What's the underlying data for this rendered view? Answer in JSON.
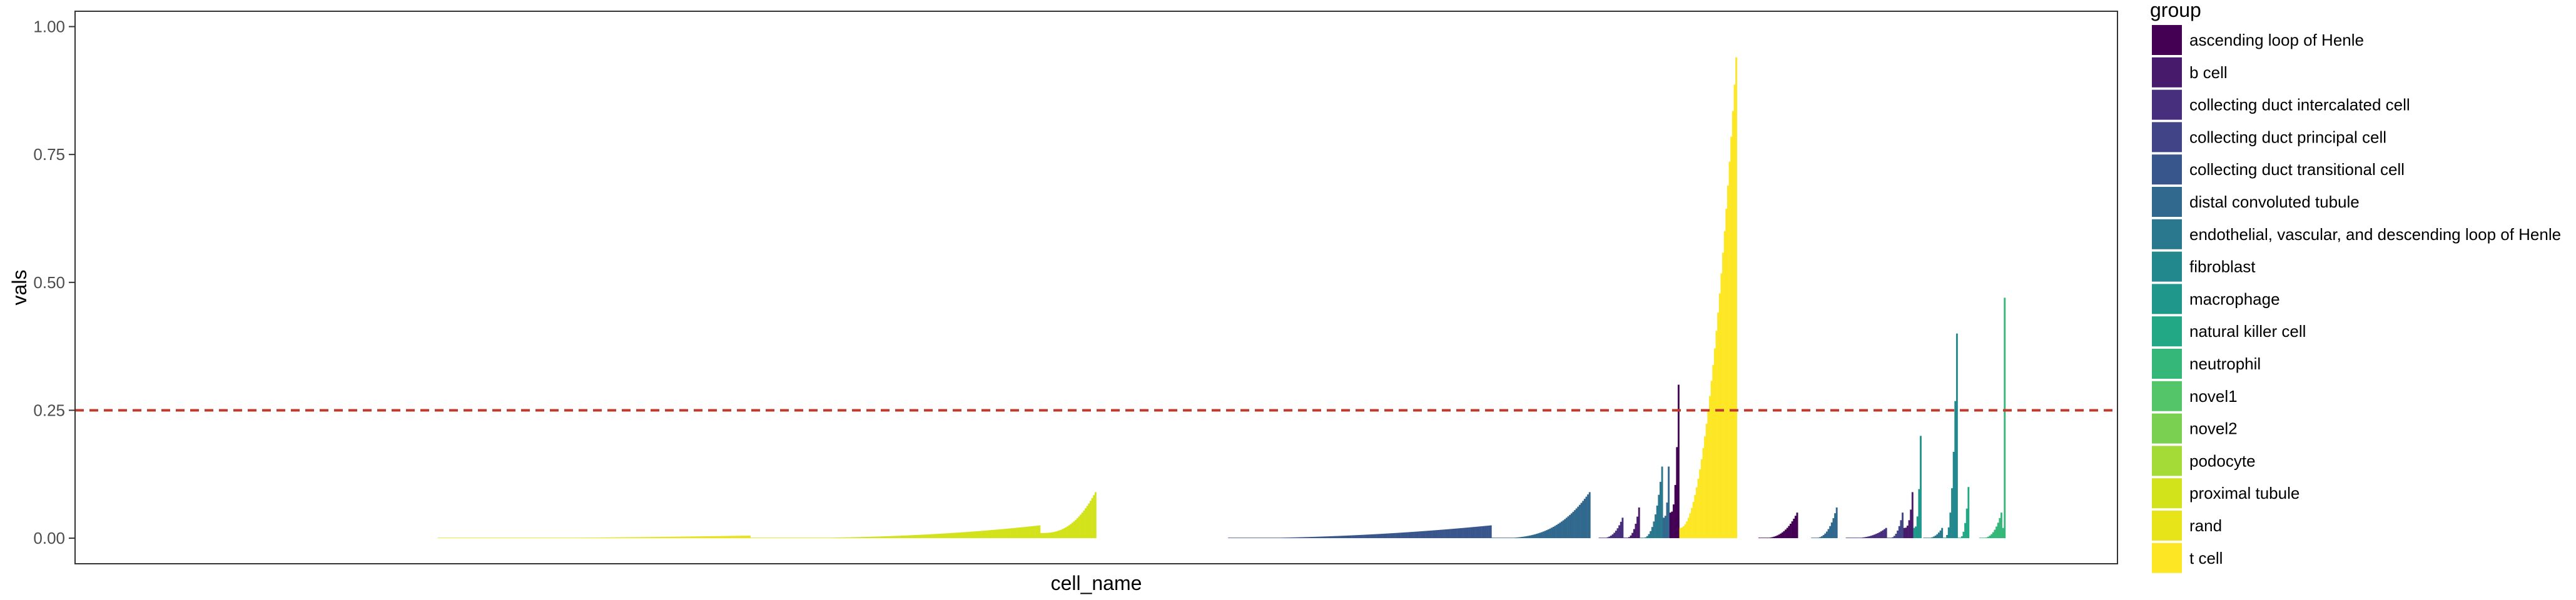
{
  "chart_data": {
    "type": "bar",
    "xlabel": "cell_name",
    "ylabel": "vals",
    "ylim": [
      -0.05,
      1.03
    ],
    "yticks": [
      0.0,
      0.25,
      0.5,
      0.75,
      1.0
    ],
    "ytick_labels": [
      "0.00",
      "0.25",
      "0.50",
      "0.75",
      "1.00"
    ],
    "grid": false,
    "x_tick_labels_shown": false,
    "threshold": {
      "value": 0.25,
      "style": "dashed",
      "color": "#c0392b"
    },
    "legend": {
      "title": "group",
      "placement": "right",
      "entries": [
        {
          "name": "ascending loop of Henle",
          "color": "#440154"
        },
        {
          "name": "b cell",
          "color": "#481A6C"
        },
        {
          "name": "collecting duct intercalated cell",
          "color": "#472F7D"
        },
        {
          "name": "collecting duct principal cell",
          "color": "#414487"
        },
        {
          "name": "collecting duct transitional cell",
          "color": "#39568C"
        },
        {
          "name": "distal convoluted tubule",
          "color": "#31688E"
        },
        {
          "name": "endothelial, vascular, and descending loop of Henle",
          "color": "#2A788E"
        },
        {
          "name": "fibroblast",
          "color": "#23888E"
        },
        {
          "name": "macrophage",
          "color": "#1F988B"
        },
        {
          "name": "natural killer cell",
          "color": "#22A884"
        },
        {
          "name": "neutrophil",
          "color": "#35B779"
        },
        {
          "name": "novel1",
          "color": "#54C568"
        },
        {
          "name": "novel2",
          "color": "#7AD151"
        },
        {
          "name": "podocyte",
          "color": "#A5DB36"
        },
        {
          "name": "proximal tubule",
          "color": "#D2E21B"
        },
        {
          "name": "rand",
          "color": "#E7E419"
        },
        {
          "name": "t cell",
          "color": "#FDE725"
        }
      ]
    },
    "n_cells": 1240,
    "segments": [
      {
        "group": "rand",
        "start": 220,
        "end": 410,
        "min": 0.0,
        "max": 0.005,
        "shape": 2
      },
      {
        "group": "proximal tubule",
        "start": 410,
        "end": 586,
        "min": 0.0,
        "max": 0.025,
        "shape": 2.5
      },
      {
        "group": "proximal tubule",
        "start": 586,
        "end": 620,
        "min": 0.01,
        "max": 0.09,
        "shape": 2.5
      },
      {
        "group": "collecting duct transitional cell",
        "start": 700,
        "end": 860,
        "min": 0.0,
        "max": 0.025,
        "shape": 2
      },
      {
        "group": "distal convoluted tubule",
        "start": 860,
        "end": 920,
        "min": 0.0,
        "max": 0.09,
        "shape": 3
      },
      {
        "group": "collecting duct intercalated cell",
        "start": 925,
        "end": 940,
        "min": 0.0,
        "max": 0.04,
        "shape": 3
      },
      {
        "group": "b cell",
        "start": 940,
        "end": 950,
        "min": 0.0,
        "max": 0.06,
        "shape": 3
      },
      {
        "group": "endothelial, vascular, and descending loop of Henle",
        "start": 950,
        "end": 964,
        "min": 0.0,
        "max": 0.14,
        "shape": 3
      },
      {
        "group": "distal convoluted tubule",
        "start": 964,
        "end": 968,
        "min": 0.04,
        "max": 0.14,
        "shape": 3
      },
      {
        "group": "ascending loop of Henle",
        "start": 968,
        "end": 974,
        "min": 0.05,
        "max": 0.3,
        "shape": 3
      },
      {
        "group": "t cell",
        "start": 974,
        "end": 1009,
        "min": 0.02,
        "max": 0.94,
        "shape": 2
      },
      {
        "group": "ascending loop of Henle",
        "start": 1022,
        "end": 1046,
        "min": 0.0,
        "max": 0.05,
        "shape": 3
      },
      {
        "group": "distal convoluted tubule",
        "start": 1054,
        "end": 1070,
        "min": 0.0,
        "max": 0.06,
        "shape": 3
      },
      {
        "group": "collecting duct intercalated cell",
        "start": 1075,
        "end": 1100,
        "min": 0.0,
        "max": 0.02,
        "shape": 3
      },
      {
        "group": "collecting duct principal cell",
        "start": 1100,
        "end": 1110,
        "min": 0.0,
        "max": 0.05,
        "shape": 3
      },
      {
        "group": "b cell",
        "start": 1110,
        "end": 1116,
        "min": 0.02,
        "max": 0.09,
        "shape": 3
      },
      {
        "group": "macrophage",
        "start": 1116,
        "end": 1121,
        "min": 0.02,
        "max": 0.2,
        "shape": 3
      },
      {
        "group": "endothelial, vascular, and descending loop of Henle",
        "start": 1122,
        "end": 1134,
        "min": 0.0,
        "max": 0.02,
        "shape": 3
      },
      {
        "group": "fibroblast",
        "start": 1134,
        "end": 1143,
        "min": 0.0,
        "max": 0.4,
        "shape": 3
      },
      {
        "group": "natural killer cell",
        "start": 1143,
        "end": 1150,
        "min": 0.0,
        "max": 0.1,
        "shape": 3
      },
      {
        "group": "neutrophil",
        "start": 1156,
        "end": 1170,
        "min": 0.0,
        "max": 0.05,
        "shape": 3
      },
      {
        "group": "neutrophil",
        "start": 1170,
        "end": 1172,
        "min": 0.02,
        "max": 0.47,
        "shape": 3
      }
    ]
  }
}
